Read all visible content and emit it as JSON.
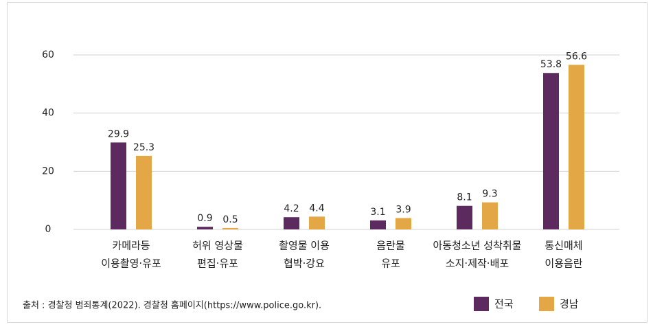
{
  "chart_data": {
    "type": "bar",
    "categories": [
      [
        "카메라등",
        "이용촬영·유포"
      ],
      [
        "허위 영상물",
        "편집·유포"
      ],
      [
        "촬영물 이용",
        "협박·강요"
      ],
      [
        "음란물",
        "유포"
      ],
      [
        "아동청소년 성착취물",
        "소지·제작·배포"
      ],
      [
        "통신매체",
        "이용음란"
      ]
    ],
    "series": [
      {
        "name": "전국",
        "color": "#5c2a5e",
        "values": [
          29.9,
          0.9,
          4.2,
          3.1,
          8.1,
          53.8
        ]
      },
      {
        "name": "경남",
        "color": "#e3a845",
        "values": [
          25.3,
          0.5,
          4.4,
          3.9,
          9.3,
          56.6
        ]
      }
    ],
    "ylim": [
      0,
      60
    ],
    "yticks": [
      0,
      20,
      40,
      60
    ],
    "grid": true,
    "legend": "bottom-right",
    "source": "출처 : 경찰청 범죄통계(2022). 경찰청 홈페이지(https://www.police.go.kr)."
  }
}
